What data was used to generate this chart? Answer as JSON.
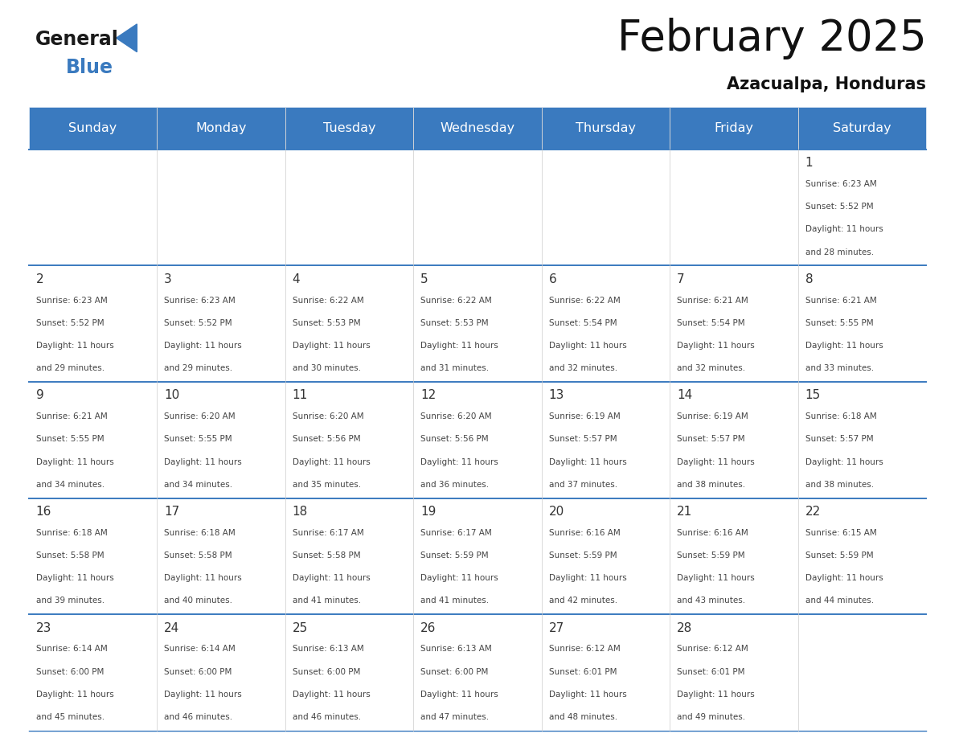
{
  "title": "February 2025",
  "subtitle": "Azacualpa, Honduras",
  "header_bg_color": "#3a7abf",
  "header_text_color": "#ffffff",
  "day_headers": [
    "Sunday",
    "Monday",
    "Tuesday",
    "Wednesday",
    "Thursday",
    "Friday",
    "Saturday"
  ],
  "divider_color": "#3a7abf",
  "day_number_color": "#333333",
  "cell_text_color": "#444444",
  "logo_general_color": "#1a1a1a",
  "logo_blue_color": "#3a7abf",
  "weeks": [
    [
      null,
      null,
      null,
      null,
      null,
      null,
      {
        "day": "1",
        "sunrise": "6:23 AM",
        "sunset": "5:52 PM",
        "daylight": "11 hours",
        "daylight2": "and 28 minutes."
      }
    ],
    [
      {
        "day": "2",
        "sunrise": "6:23 AM",
        "sunset": "5:52 PM",
        "daylight": "11 hours",
        "daylight2": "and 29 minutes."
      },
      {
        "day": "3",
        "sunrise": "6:23 AM",
        "sunset": "5:52 PM",
        "daylight": "11 hours",
        "daylight2": "and 29 minutes."
      },
      {
        "day": "4",
        "sunrise": "6:22 AM",
        "sunset": "5:53 PM",
        "daylight": "11 hours",
        "daylight2": "and 30 minutes."
      },
      {
        "day": "5",
        "sunrise": "6:22 AM",
        "sunset": "5:53 PM",
        "daylight": "11 hours",
        "daylight2": "and 31 minutes."
      },
      {
        "day": "6",
        "sunrise": "6:22 AM",
        "sunset": "5:54 PM",
        "daylight": "11 hours",
        "daylight2": "and 32 minutes."
      },
      {
        "day": "7",
        "sunrise": "6:21 AM",
        "sunset": "5:54 PM",
        "daylight": "11 hours",
        "daylight2": "and 32 minutes."
      },
      {
        "day": "8",
        "sunrise": "6:21 AM",
        "sunset": "5:55 PM",
        "daylight": "11 hours",
        "daylight2": "and 33 minutes."
      }
    ],
    [
      {
        "day": "9",
        "sunrise": "6:21 AM",
        "sunset": "5:55 PM",
        "daylight": "11 hours",
        "daylight2": "and 34 minutes."
      },
      {
        "day": "10",
        "sunrise": "6:20 AM",
        "sunset": "5:55 PM",
        "daylight": "11 hours",
        "daylight2": "and 34 minutes."
      },
      {
        "day": "11",
        "sunrise": "6:20 AM",
        "sunset": "5:56 PM",
        "daylight": "11 hours",
        "daylight2": "and 35 minutes."
      },
      {
        "day": "12",
        "sunrise": "6:20 AM",
        "sunset": "5:56 PM",
        "daylight": "11 hours",
        "daylight2": "and 36 minutes."
      },
      {
        "day": "13",
        "sunrise": "6:19 AM",
        "sunset": "5:57 PM",
        "daylight": "11 hours",
        "daylight2": "and 37 minutes."
      },
      {
        "day": "14",
        "sunrise": "6:19 AM",
        "sunset": "5:57 PM",
        "daylight": "11 hours",
        "daylight2": "and 38 minutes."
      },
      {
        "day": "15",
        "sunrise": "6:18 AM",
        "sunset": "5:57 PM",
        "daylight": "11 hours",
        "daylight2": "and 38 minutes."
      }
    ],
    [
      {
        "day": "16",
        "sunrise": "6:18 AM",
        "sunset": "5:58 PM",
        "daylight": "11 hours",
        "daylight2": "and 39 minutes."
      },
      {
        "day": "17",
        "sunrise": "6:18 AM",
        "sunset": "5:58 PM",
        "daylight": "11 hours",
        "daylight2": "and 40 minutes."
      },
      {
        "day": "18",
        "sunrise": "6:17 AM",
        "sunset": "5:58 PM",
        "daylight": "11 hours",
        "daylight2": "and 41 minutes."
      },
      {
        "day": "19",
        "sunrise": "6:17 AM",
        "sunset": "5:59 PM",
        "daylight": "11 hours",
        "daylight2": "and 41 minutes."
      },
      {
        "day": "20",
        "sunrise": "6:16 AM",
        "sunset": "5:59 PM",
        "daylight": "11 hours",
        "daylight2": "and 42 minutes."
      },
      {
        "day": "21",
        "sunrise": "6:16 AM",
        "sunset": "5:59 PM",
        "daylight": "11 hours",
        "daylight2": "and 43 minutes."
      },
      {
        "day": "22",
        "sunrise": "6:15 AM",
        "sunset": "5:59 PM",
        "daylight": "11 hours",
        "daylight2": "and 44 minutes."
      }
    ],
    [
      {
        "day": "23",
        "sunrise": "6:14 AM",
        "sunset": "6:00 PM",
        "daylight": "11 hours",
        "daylight2": "and 45 minutes."
      },
      {
        "day": "24",
        "sunrise": "6:14 AM",
        "sunset": "6:00 PM",
        "daylight": "11 hours",
        "daylight2": "and 46 minutes."
      },
      {
        "day": "25",
        "sunrise": "6:13 AM",
        "sunset": "6:00 PM",
        "daylight": "11 hours",
        "daylight2": "and 46 minutes."
      },
      {
        "day": "26",
        "sunrise": "6:13 AM",
        "sunset": "6:00 PM",
        "daylight": "11 hours",
        "daylight2": "and 47 minutes."
      },
      {
        "day": "27",
        "sunrise": "6:12 AM",
        "sunset": "6:01 PM",
        "daylight": "11 hours",
        "daylight2": "and 48 minutes."
      },
      {
        "day": "28",
        "sunrise": "6:12 AM",
        "sunset": "6:01 PM",
        "daylight": "11 hours",
        "daylight2": "and 49 minutes."
      },
      null
    ]
  ]
}
